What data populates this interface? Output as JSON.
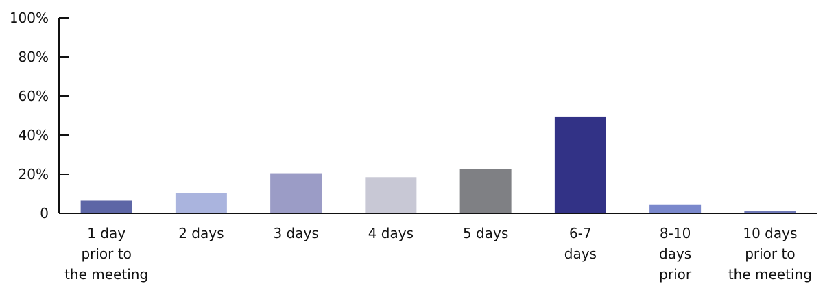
{
  "chart_data": {
    "type": "bar",
    "categories": [
      [
        "1 day",
        "prior to",
        "the meeting"
      ],
      [
        "2 days"
      ],
      [
        "3 days"
      ],
      [
        "4 days"
      ],
      [
        "5 days"
      ],
      [
        "6-7",
        "days"
      ],
      [
        "8-10",
        "days",
        "prior"
      ],
      [
        "10 days",
        "prior to",
        "the meeting"
      ]
    ],
    "values": [
      6.5,
      10.5,
      20.5,
      18.5,
      22.5,
      49.5,
      4.3,
      1.3
    ],
    "colors": [
      "#5d66a6",
      "#aab4de",
      "#9b9cc6",
      "#c8c8d5",
      "#7f8084",
      "#323286",
      "#7a88cc",
      "#6e78b6"
    ],
    "yticks": [
      "0",
      "20%",
      "40%",
      "60%",
      "80%",
      "100%"
    ],
    "ytick_values": [
      0,
      20,
      40,
      60,
      80,
      100
    ],
    "ylim": [
      0,
      100
    ],
    "grid": false,
    "title": "",
    "xlabel": "",
    "ylabel": ""
  }
}
